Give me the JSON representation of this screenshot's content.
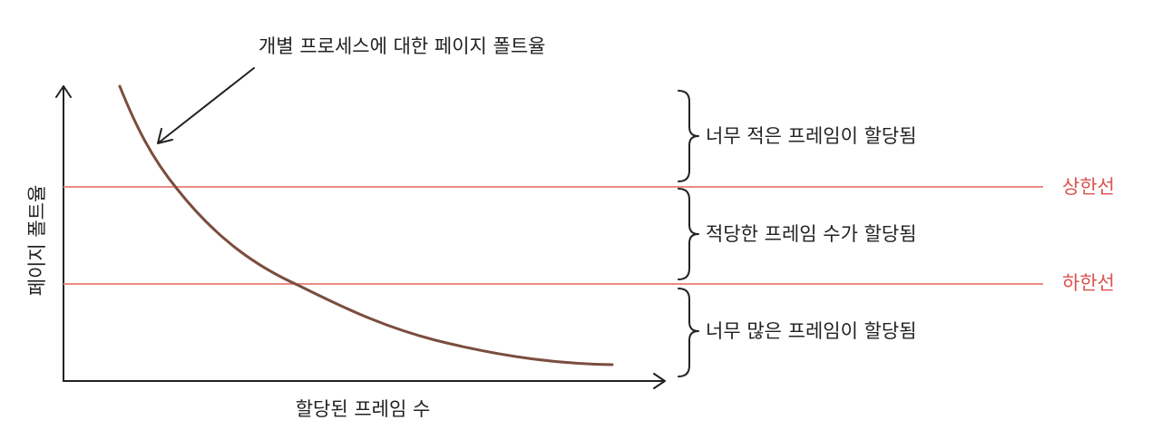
{
  "annotation": "개별 프로세스에 대한 페이지 폴트율",
  "axes": {
    "y_label": "페이지 폴트율",
    "x_label": "할당된 프레임 수"
  },
  "thresholds": {
    "upper": "상한선",
    "lower": "하한선"
  },
  "regions": [
    "너무 적은 프레임이 할당됨",
    "적당한 프레임 수가 할당됨",
    "너무 많은 프레임이 할당됨"
  ]
}
